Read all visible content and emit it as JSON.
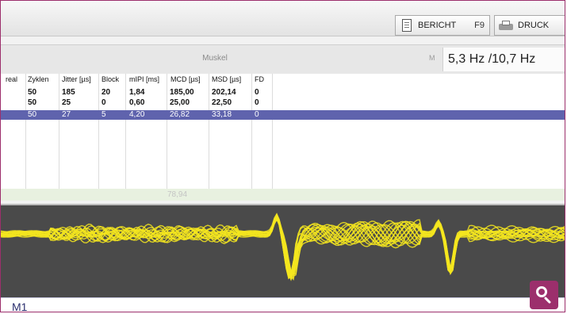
{
  "toolbar": {
    "bericht_label": "BERICHT",
    "bericht_key": "F9",
    "druck_label": "DRUCK"
  },
  "muskel_bar": {
    "label": "Muskel",
    "badge": "M",
    "frequency": "5,3 Hz /10,7 Hz"
  },
  "table": {
    "headers": [
      "real",
      "Zyklen",
      "Jitter [µs]",
      "Block",
      "mIPI [ms]",
      "MCD [µs]",
      "MSD [µs]",
      "FD"
    ],
    "rows": [
      [
        "",
        "50",
        "185",
        "20",
        "1,84",
        "185,00",
        "202,14",
        "0"
      ],
      [
        "",
        "50",
        "25",
        "0",
        "0,60",
        "25,00",
        "22,50",
        "0"
      ],
      [
        "",
        "50",
        "27",
        "5",
        "4,20",
        "26,82",
        "33,18",
        "0"
      ]
    ],
    "selected_row": 2,
    "summary_value": "78,94"
  },
  "waveform": {
    "channel_label": "M1",
    "trace_color": "#f5e61e"
  },
  "colors": {
    "accent": "#9c2f6c",
    "selection": "#5f63ad"
  },
  "icons": {
    "bericht": "document-icon",
    "druck": "printer-icon",
    "zoom": "magnifier-icon"
  }
}
